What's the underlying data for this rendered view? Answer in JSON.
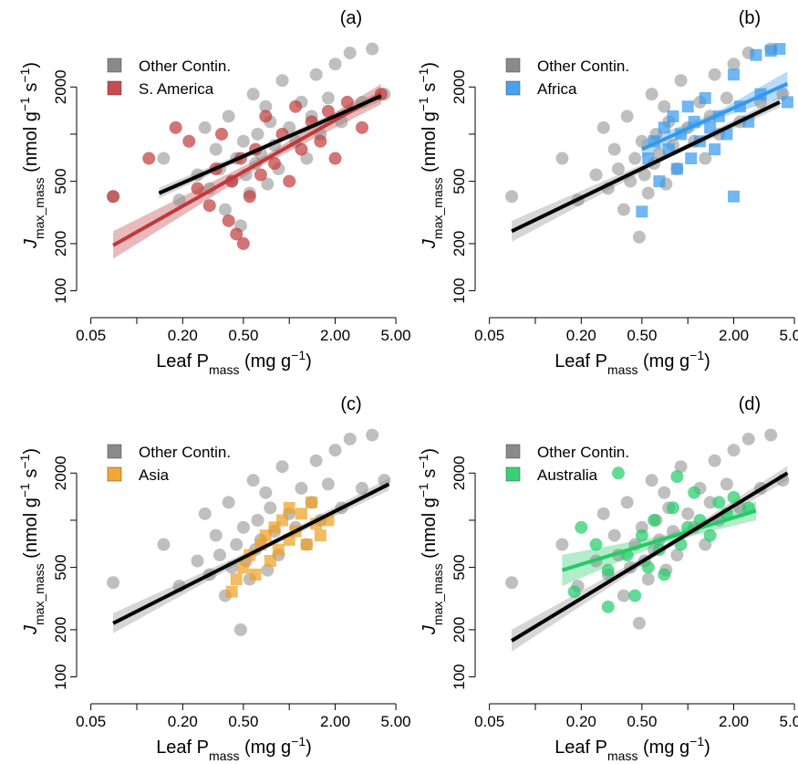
{
  "chart_data": [
    {
      "type": "scatter",
      "panel_label": "(a)",
      "xlabel": [
        "Leaf P",
        "mass",
        " (mg g",
        "−1",
        ")"
      ],
      "xlabel_format": [
        "normal",
        "sub",
        "normal",
        "sup",
        "normal"
      ],
      "ylabel": [
        "J",
        "max_mass",
        " (nmol g",
        "−1",
        " s",
        "−1",
        ")"
      ],
      "ylabel_format": [
        "italic",
        "sub",
        "normal",
        "sup",
        "normal",
        "sup",
        "normal"
      ],
      "xscale": "log",
      "yscale": "log",
      "xlim": [
        0.045,
        5.5
      ],
      "ylim": [
        75,
        4200
      ],
      "xticks": [
        0.05,
        {
          "value": 0.1,
          "label": null
        },
        {
          "value": 0.2,
          "label": "0.20"
        },
        {
          "value": 0.5,
          "label": "0.50"
        },
        {
          "value": 1,
          "label": null
        },
        {
          "value": 2,
          "label": "2.00"
        },
        {
          "value": 5,
          "label": "5.00"
        }
      ],
      "yticks": [
        100,
        200,
        500,
        {
          "value": 1000,
          "label": null
        },
        2000
      ],
      "legend": "top-left",
      "series": [
        {
          "name": "Other Contin.",
          "color": "#8a8a8a",
          "marker": "circle",
          "x": [
            0.07,
            0.15,
            0.19,
            0.25,
            0.28,
            0.3,
            0.33,
            0.35,
            0.38,
            0.4,
            0.42,
            0.45,
            0.48,
            0.5,
            0.52,
            0.55,
            0.58,
            0.6,
            0.62,
            0.65,
            0.7,
            0.72,
            0.75,
            0.8,
            0.85,
            0.9,
            1.0,
            1.1,
            1.2,
            1.3,
            1.4,
            1.5,
            1.6,
            1.8,
            2.0,
            2.2,
            2.5,
            3.0,
            3.5,
            4.2
          ],
          "values": [
            400,
            700,
            380,
            550,
            1100,
            450,
            800,
            600,
            330,
            1300,
            500,
            700,
            260,
            900,
            550,
            420,
            1800,
            650,
            1000,
            750,
            1500,
            480,
            1200,
            850,
            600,
            2200,
            1100,
            900,
            1600,
            700,
            1300,
            2400,
            1000,
            1700,
            2800,
            1200,
            3300,
            1600,
            3500,
            1800
          ],
          "fit": {
            "x": [
              0.14,
              4.0
            ],
            "values": [
              420,
              1750
            ]
          },
          "band": {
            "x": [
              0.14,
              0.8,
              4.0
            ],
            "lower": [
              390,
              850,
              1620
            ],
            "upper": [
              455,
              915,
              1890
            ]
          }
        },
        {
          "name": "S. America",
          "color": "#c0393b",
          "marker": "circle",
          "x": [
            0.07,
            0.12,
            0.18,
            0.22,
            0.25,
            0.3,
            0.33,
            0.36,
            0.4,
            0.42,
            0.45,
            0.48,
            0.5,
            0.55,
            0.6,
            0.65,
            0.7,
            0.8,
            0.9,
            1.0,
            1.1,
            1.2,
            1.4,
            1.6,
            1.8,
            2.0,
            2.4,
            3.0,
            4.0
          ],
          "values": [
            400,
            700,
            1100,
            900,
            450,
            350,
            600,
            1000,
            280,
            500,
            230,
            700,
            200,
            400,
            800,
            550,
            1300,
            650,
            1000,
            500,
            1500,
            800,
            1200,
            900,
            1400,
            700,
            1600,
            1100,
            1800
          ],
          "fit": {
            "x": [
              0.07,
              4.0
            ],
            "values": [
              195,
              1800
            ]
          },
          "band": {
            "x": [
              0.07,
              0.7,
              4.0
            ],
            "lower": [
              160,
              650,
              1550
            ],
            "upper": [
              240,
              735,
              2090
            ]
          }
        }
      ]
    },
    {
      "type": "scatter",
      "panel_label": "(b)",
      "xlabel": [
        "Leaf P",
        "mass",
        " (mg g",
        "−1",
        ")"
      ],
      "xlabel_format": [
        "normal",
        "sub",
        "normal",
        "sup",
        "normal"
      ],
      "ylabel": [
        "J",
        "max_mass",
        " (nmol g",
        "−1",
        " s",
        "−1",
        ")"
      ],
      "ylabel_format": [
        "italic",
        "sub",
        "normal",
        "sup",
        "normal",
        "sup",
        "normal"
      ],
      "xscale": "log",
      "yscale": "log",
      "xlim": [
        0.045,
        5.5
      ],
      "ylim": [
        75,
        4200
      ],
      "xticks": [
        0.05,
        {
          "value": 0.1,
          "label": null
        },
        {
          "value": 0.2,
          "label": "0.20"
        },
        {
          "value": 0.5,
          "label": "0.50"
        },
        {
          "value": 1,
          "label": null
        },
        {
          "value": 2,
          "label": "2.00"
        },
        {
          "value": 5,
          "label": "5.00"
        }
      ],
      "yticks": [
        100,
        200,
        500,
        {
          "value": 1000,
          "label": null
        },
        2000
      ],
      "legend": "top-left",
      "series": [
        {
          "name": "Other Contin.",
          "color": "#8a8a8a",
          "marker": "circle",
          "x": [
            0.07,
            0.15,
            0.19,
            0.25,
            0.28,
            0.3,
            0.33,
            0.35,
            0.38,
            0.4,
            0.42,
            0.45,
            0.48,
            0.5,
            0.52,
            0.55,
            0.58,
            0.6,
            0.62,
            0.65,
            0.7,
            0.72,
            0.75,
            0.8,
            0.85,
            0.9,
            1.0,
            1.1,
            1.2,
            1.3,
            1.4,
            1.5,
            1.6,
            1.8,
            2.0,
            2.2,
            2.5,
            3.0,
            3.5,
            4.2
          ],
          "values": [
            400,
            700,
            380,
            550,
            1100,
            450,
            800,
            600,
            330,
            1300,
            500,
            700,
            220,
            900,
            550,
            420,
            1800,
            650,
            1000,
            750,
            1500,
            480,
            1200,
            850,
            600,
            2200,
            1100,
            900,
            1600,
            700,
            1300,
            2400,
            1000,
            1700,
            2800,
            1200,
            3300,
            1600,
            3500,
            1800
          ],
          "fit": {
            "x": [
              0.07,
              4.0
            ],
            "values": [
              240,
              1600
            ]
          },
          "band": {
            "x": [
              0.07,
              0.7,
              4.0
            ],
            "lower": [
              205,
              680,
              1480
            ],
            "upper": [
              280,
              735,
              1730
            ]
          }
        },
        {
          "name": "Africa",
          "color": "#3399ee",
          "marker": "square",
          "x": [
            0.5,
            0.55,
            0.6,
            0.65,
            0.7,
            0.75,
            0.8,
            0.85,
            0.9,
            1.0,
            1.05,
            1.1,
            1.2,
            1.3,
            1.4,
            1.5,
            1.6,
            1.8,
            2.0,
            2.0,
            2.2,
            2.5,
            2.8,
            3.0,
            3.5,
            4.0,
            4.5
          ],
          "values": [
            320,
            700,
            900,
            500,
            1100,
            800,
            1300,
            600,
            1000,
            1500,
            700,
            1200,
            900,
            1700,
            1100,
            800,
            1300,
            1000,
            2400,
            400,
            1500,
            1200,
            3200,
            1800,
            3400,
            3500,
            1600
          ],
          "fit": {
            "x": [
              0.5,
              4.5
            ],
            "values": [
              800,
              2100
            ]
          },
          "band": {
            "x": [
              0.5,
              1.5,
              4.5
            ],
            "lower": [
              700,
              1240,
              1750
            ],
            "upper": [
              910,
              1360,
              2520
            ]
          }
        }
      ]
    },
    {
      "type": "scatter",
      "panel_label": "(c)",
      "xlabel": [
        "Leaf P",
        "mass",
        " (mg g",
        "−1",
        ")"
      ],
      "xlabel_format": [
        "normal",
        "sub",
        "normal",
        "sup",
        "normal"
      ],
      "ylabel": [
        "J",
        "max_mass",
        " (nmol g",
        "−1",
        " s",
        "−1",
        ")"
      ],
      "ylabel_format": [
        "italic",
        "sub",
        "normal",
        "sup",
        "normal",
        "sup",
        "normal"
      ],
      "xscale": "log",
      "yscale": "log",
      "xlim": [
        0.045,
        5.5
      ],
      "ylim": [
        75,
        4200
      ],
      "xticks": [
        0.05,
        {
          "value": 0.1,
          "label": null
        },
        {
          "value": 0.2,
          "label": "0.20"
        },
        {
          "value": 0.5,
          "label": "0.50"
        },
        {
          "value": 1,
          "label": null
        },
        {
          "value": 2,
          "label": "2.00"
        },
        {
          "value": 5,
          "label": "5.00"
        }
      ],
      "yticks": [
        100,
        200,
        500,
        {
          "value": 1000,
          "label": null
        },
        2000
      ],
      "legend": "top-left",
      "series": [
        {
          "name": "Other Contin.",
          "color": "#8a8a8a",
          "marker": "circle",
          "x": [
            0.07,
            0.15,
            0.19,
            0.25,
            0.28,
            0.3,
            0.33,
            0.35,
            0.38,
            0.4,
            0.42,
            0.45,
            0.48,
            0.5,
            0.52,
            0.55,
            0.58,
            0.6,
            0.62,
            0.65,
            0.7,
            0.72,
            0.75,
            0.8,
            0.85,
            0.9,
            1.0,
            1.1,
            1.2,
            1.3,
            1.4,
            1.5,
            1.6,
            1.8,
            2.0,
            2.2,
            2.5,
            3.0,
            3.5,
            4.2
          ],
          "values": [
            400,
            700,
            380,
            550,
            1100,
            450,
            800,
            600,
            330,
            1300,
            500,
            700,
            200,
            900,
            550,
            420,
            1800,
            650,
            1000,
            750,
            1500,
            480,
            1200,
            850,
            600,
            2200,
            1100,
            900,
            1600,
            700,
            1300,
            2400,
            1000,
            1700,
            2800,
            1200,
            3300,
            1600,
            3500,
            1800
          ],
          "fit": {
            "x": [
              0.07,
              4.5
            ],
            "values": [
              220,
              1700
            ]
          },
          "band": {
            "x": [
              0.07,
              0.7,
              4.5
            ],
            "lower": [
              190,
              655,
              1550
            ],
            "upper": [
              255,
              708,
              1860
            ]
          }
        },
        {
          "name": "Asia",
          "color": "#f0a020",
          "marker": "square",
          "x": [
            0.42,
            0.45,
            0.5,
            0.55,
            0.6,
            0.65,
            0.7,
            0.75,
            0.8,
            0.85,
            0.9,
            1.0,
            1.0,
            1.1,
            1.2,
            1.3,
            1.4,
            1.5,
            1.6,
            1.8
          ],
          "values": [
            350,
            420,
            500,
            600,
            450,
            700,
            800,
            550,
            900,
            650,
            1000,
            750,
            1200,
            850,
            1100,
            700,
            1300,
            950,
            800,
            1000
          ]
        }
      ]
    },
    {
      "type": "scatter",
      "panel_label": "(d)",
      "xlabel": [
        "Leaf P",
        "mass",
        " (mg g",
        "−1",
        ")"
      ],
      "xlabel_format": [
        "normal",
        "sub",
        "normal",
        "sup",
        "normal"
      ],
      "ylabel": [
        "J",
        "max_mass",
        " (nmol g",
        "−1",
        " s",
        "−1",
        ")"
      ],
      "ylabel_format": [
        "italic",
        "sub",
        "normal",
        "sup",
        "normal",
        "sup",
        "normal"
      ],
      "xscale": "log",
      "yscale": "log",
      "xlim": [
        0.045,
        5.5
      ],
      "ylim": [
        75,
        4200
      ],
      "xticks": [
        0.05,
        {
          "value": 0.1,
          "label": null
        },
        {
          "value": 0.2,
          "label": "0.20"
        },
        {
          "value": 0.5,
          "label": "0.50"
        },
        {
          "value": 1,
          "label": null
        },
        {
          "value": 2,
          "label": "2.00"
        },
        {
          "value": 5,
          "label": "5.00"
        }
      ],
      "yticks": [
        100,
        200,
        500,
        {
          "value": 1000,
          "label": null
        },
        2000
      ],
      "legend": "top-left",
      "series": [
        {
          "name": "Other Contin.",
          "color": "#8a8a8a",
          "marker": "circle",
          "x": [
            0.07,
            0.15,
            0.19,
            0.25,
            0.28,
            0.3,
            0.33,
            0.35,
            0.38,
            0.4,
            0.42,
            0.45,
            0.48,
            0.5,
            0.52,
            0.55,
            0.58,
            0.6,
            0.62,
            0.65,
            0.7,
            0.72,
            0.75,
            0.8,
            0.85,
            0.9,
            1.0,
            1.1,
            1.2,
            1.3,
            1.4,
            1.5,
            1.6,
            1.8,
            2.0,
            2.2,
            2.5,
            3.0,
            3.5,
            4.2
          ],
          "values": [
            400,
            700,
            380,
            550,
            1100,
            450,
            800,
            600,
            330,
            1300,
            500,
            700,
            220,
            900,
            550,
            420,
            1800,
            650,
            1000,
            750,
            1500,
            480,
            1200,
            850,
            600,
            2200,
            1100,
            900,
            1600,
            700,
            1300,
            2400,
            1000,
            1700,
            2800,
            1200,
            3300,
            1600,
            3500,
            1800
          ],
          "fit": {
            "x": [
              0.07,
              4.5
            ],
            "values": [
              170,
              2000
            ]
          },
          "band": {
            "x": [
              0.07,
              0.7,
              4.5
            ],
            "lower": [
              145,
              635,
              1800
            ],
            "upper": [
              200,
              695,
              2220
            ]
          }
        },
        {
          "name": "Australia",
          "color": "#22cc66",
          "marker": "circle",
          "x": [
            0.18,
            0.2,
            0.25,
            0.3,
            0.35,
            0.4,
            0.45,
            0.5,
            0.55,
            0.6,
            0.65,
            0.7,
            0.8,
            0.9,
            1.0,
            1.1,
            1.2,
            1.4,
            1.6,
            1.8,
            2.0,
            2.5,
            0.85,
            0.3
          ],
          "values": [
            350,
            900,
            700,
            480,
            2000,
            600,
            330,
            800,
            500,
            1000,
            650,
            450,
            1200,
            700,
            900,
            1500,
            1000,
            800,
            1300,
            1100,
            1400,
            1200,
            1900,
            280
          ],
          "fit": {
            "x": [
              0.15,
              2.8
            ],
            "values": [
              480,
              1150
            ]
          },
          "band": {
            "x": [
              0.15,
              0.7,
              2.8
            ],
            "lower": [
              380,
              720,
              1000
            ],
            "upper": [
              600,
              800,
              1320
            ]
          }
        }
      ]
    }
  ]
}
